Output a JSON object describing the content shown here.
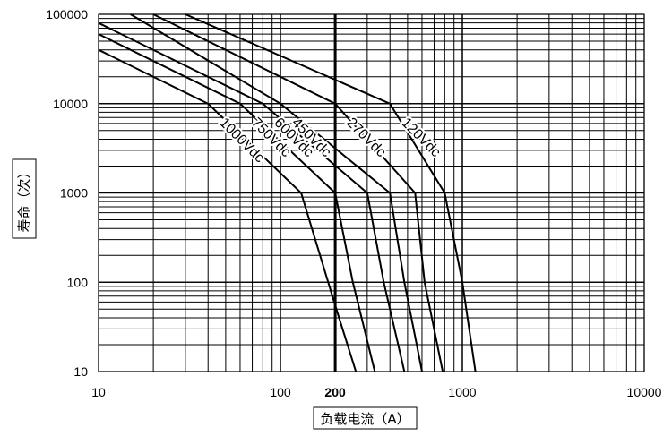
{
  "chart_data": {
    "type": "line",
    "x_scale": "log",
    "y_scale": "log",
    "xlim": [
      10,
      10000
    ],
    "ylim": [
      10,
      100000
    ],
    "xlabel": "负载电流（A）",
    "ylabel": "寿命（次）",
    "x_ticks": [
      {
        "value": 10,
        "label": "10"
      },
      {
        "value": 100,
        "label": "100"
      },
      {
        "value": 200,
        "label": "200",
        "bold": true
      },
      {
        "value": 1000,
        "label": "1000"
      },
      {
        "value": 10000,
        "label": "10000"
      }
    ],
    "y_ticks": [
      {
        "value": 100000,
        "label": "100000"
      },
      {
        "value": 10000,
        "label": "10000"
      },
      {
        "value": 1000,
        "label": "1000"
      },
      {
        "value": 100,
        "label": "100"
      },
      {
        "value": 10,
        "label": "10"
      }
    ],
    "grid": true,
    "reference_line": {
      "x": 200
    },
    "series": [
      {
        "name": "1000Vdc",
        "points": [
          [
            10,
            40000
          ],
          [
            40,
            10000
          ],
          [
            130,
            1000
          ],
          [
            200,
            55
          ],
          [
            260,
            10
          ]
        ]
      },
      {
        "name": "750Vdc",
        "points": [
          [
            10,
            60000
          ],
          [
            60,
            10000
          ],
          [
            200,
            1000
          ],
          [
            250,
            100
          ],
          [
            330,
            10
          ]
        ]
      },
      {
        "name": "600Vdc",
        "points": [
          [
            10,
            80000
          ],
          [
            80,
            10000
          ],
          [
            300,
            1000
          ],
          [
            370,
            100
          ],
          [
            480,
            10
          ]
        ]
      },
      {
        "name": "450Vdc",
        "points": [
          [
            15,
            100000
          ],
          [
            100,
            10000
          ],
          [
            400,
            1000
          ],
          [
            480,
            100
          ],
          [
            600,
            10
          ]
        ]
      },
      {
        "name": "270Vdc",
        "points": [
          [
            20,
            100000
          ],
          [
            200,
            10000
          ],
          [
            550,
            1000
          ],
          [
            620,
            100
          ],
          [
            780,
            10
          ]
        ]
      },
      {
        "name": "120Vdc",
        "points": [
          [
            30,
            100000
          ],
          [
            400,
            10000
          ],
          [
            800,
            1000
          ],
          [
            1000,
            100
          ],
          [
            1180,
            10
          ]
        ]
      }
    ]
  }
}
